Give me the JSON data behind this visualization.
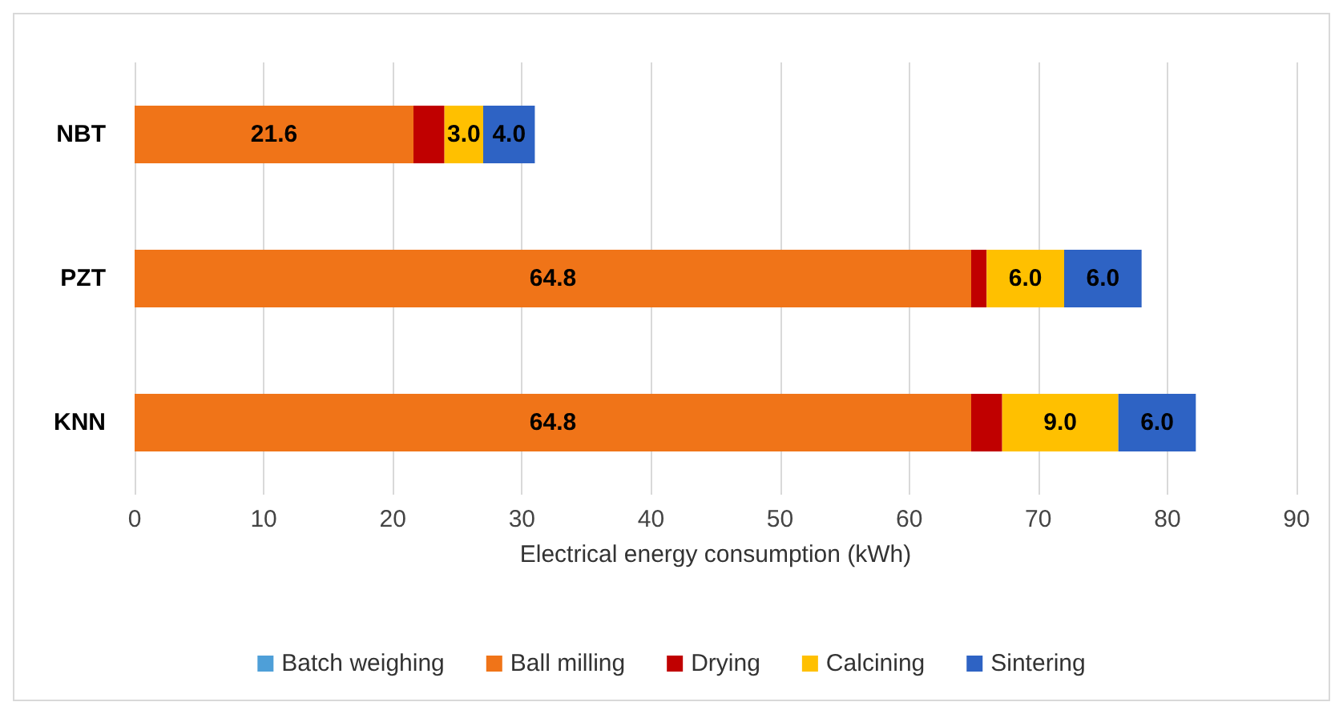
{
  "chart_data": {
    "type": "bar",
    "orientation": "horizontal",
    "stacked": true,
    "categories": [
      "NBT",
      "PZT",
      "KNN"
    ],
    "xlabel": "Electrical energy consumption (kWh)",
    "xlim": [
      0,
      90
    ],
    "xticks": [
      0,
      10,
      20,
      30,
      40,
      50,
      60,
      70,
      80,
      90
    ],
    "grid": "x",
    "legend": "bottom",
    "series": [
      {
        "name": "Batch weighing",
        "color": "#4e9fd8",
        "values": [
          0,
          0,
          0
        ],
        "value_labels": [
          null,
          null,
          null
        ]
      },
      {
        "name": "Ball milling",
        "color": "#f07418",
        "values": [
          21.6,
          64.8,
          64.8
        ],
        "value_labels": [
          "21.6",
          "64.8",
          "64.8"
        ]
      },
      {
        "name": "Drying",
        "color": "#c00000",
        "values": [
          2.4,
          1.2,
          2.4
        ],
        "value_labels": [
          null,
          null,
          null
        ]
      },
      {
        "name": "Calcining",
        "color": "#ffc000",
        "values": [
          3.0,
          6.0,
          9.0
        ],
        "value_labels": [
          "3.0",
          "6.0",
          "9.0"
        ]
      },
      {
        "name": "Sintering",
        "color": "#2e63c4",
        "values": [
          4.0,
          6.0,
          6.0
        ],
        "value_labels": [
          "4.0",
          "6.0",
          "6.0"
        ]
      }
    ]
  }
}
